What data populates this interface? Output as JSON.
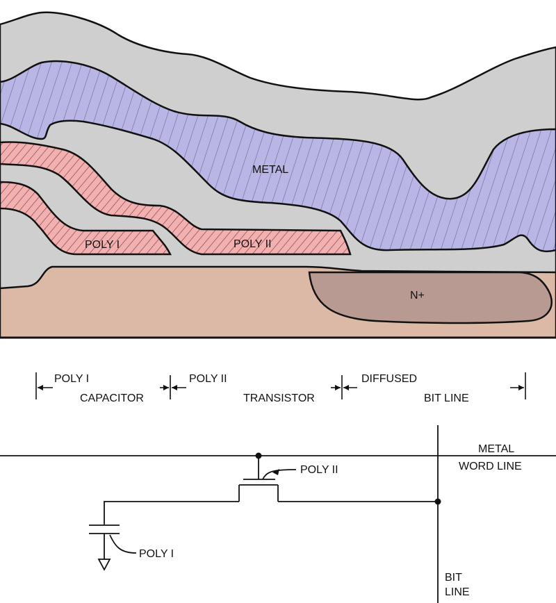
{
  "cross_section": {
    "metal_label": "METAL",
    "poly1_label": "POLY I",
    "poly2_label": "POLY II",
    "n_plus_label": "N+",
    "colors": {
      "oxide": "#cfcfcf",
      "metal": "#b9b6e6",
      "poly": "#f3b0b0",
      "substrate": "#dcb9a6",
      "n_plus": "#b99a92",
      "outline": "#111111"
    }
  },
  "dimension_bar": {
    "seg1_top": "POLY I",
    "seg1_bottom": "CAPACITOR",
    "seg2_top": "POLY II",
    "seg2_bottom": "TRANSISTOR",
    "seg3_top": "DIFFUSED",
    "seg3_bottom": "BIT LINE"
  },
  "schematic": {
    "metal_label": "METAL",
    "word_line_label": "WORD LINE",
    "poly2_callout": "POLY II",
    "poly1_callout": "POLY I",
    "bit_label": "BIT",
    "line_label": "LINE"
  }
}
